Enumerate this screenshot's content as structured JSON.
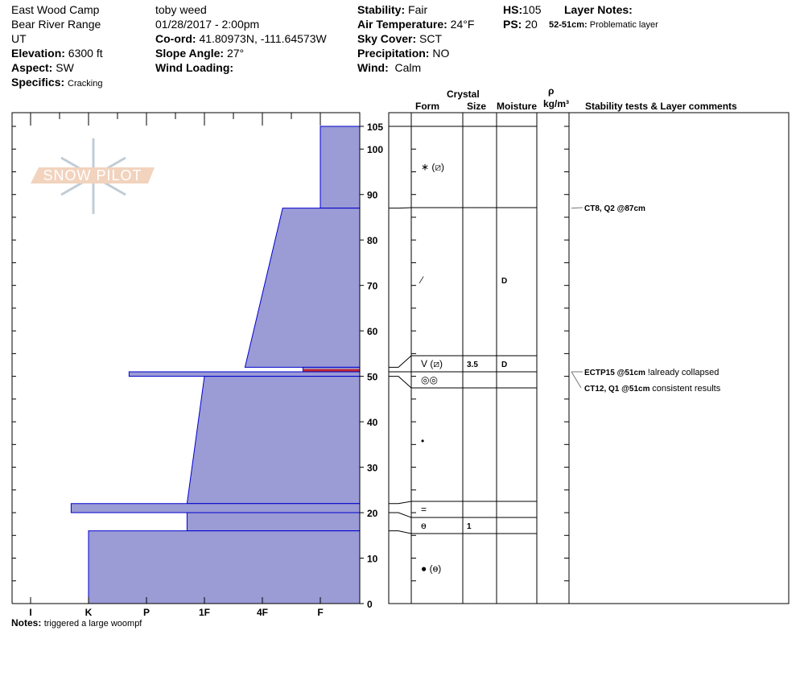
{
  "site": {
    "name": "East Wood Camp",
    "range": "Bear River Range",
    "state": "UT",
    "elevation_label": "Elevation:",
    "elevation": "6300 ft",
    "aspect_label": "Aspect:",
    "aspect": "SW",
    "specifics_label": "Specifics:",
    "specifics": "Cracking"
  },
  "obs": {
    "observer": "toby weed",
    "datetime": "01/28/2017 - 2:00pm",
    "coord_label": "Co-ord:",
    "coord": "41.80973N, -111.64573W",
    "slope_label": "Slope Angle:",
    "slope": "27°",
    "wind_loading_label": "Wind Loading:",
    "wind_loading": ""
  },
  "weather": {
    "stability_label": "Stability:",
    "stability": "Fair",
    "air_temp_label": "Air Temperature:",
    "air_temp": "24°F",
    "sky_label": "Sky Cover:",
    "sky": "SCT",
    "precip_label": "Precipitation:",
    "precip": "NO",
    "wind_label": "Wind:",
    "wind": "Calm"
  },
  "snow": {
    "hs_label": "HS:",
    "hs": "105",
    "ps_label": "PS:",
    "ps": "20",
    "layer_notes_label": "Layer Notes:",
    "layer_note_range": "52-51cm:",
    "layer_note": "Problematic layer"
  },
  "columns": {
    "crystal": "Crystal",
    "form": "Form",
    "size": "Size",
    "moisture": "Moisture",
    "rho": "ρ",
    "density": "kg/m³",
    "comments": "Stability tests & Layer comments"
  },
  "notes_label": "Notes:",
  "notes": "triggered a large woompf",
  "logo_text": "SNOW PILOT",
  "colors": {
    "layer_fill": "#9b9bd6",
    "layer_edge": "#0000cc",
    "problem": "#c0282c"
  },
  "chart_data": {
    "type": "snow-profile",
    "depth_axis": {
      "range": [
        0,
        105
      ],
      "ticks": [
        0,
        10,
        20,
        30,
        40,
        50,
        60,
        70,
        80,
        90,
        100,
        105
      ]
    },
    "hardness_axis": {
      "labels": [
        "I",
        "K",
        "P",
        "1F",
        "4F",
        "F"
      ],
      "values": [
        6,
        5,
        4,
        3,
        2,
        1
      ]
    },
    "layers": [
      {
        "top": 105,
        "bottom": 87,
        "hardness_top": 1,
        "hardness_bottom": 1,
        "form": "∗ (⧄)",
        "size": "",
        "moisture": ""
      },
      {
        "top": 87,
        "bottom": 52,
        "hardness_top": 1.65,
        "hardness_bottom": 2.3,
        "form": "⁄",
        "size": "",
        "moisture": "D"
      },
      {
        "top": 52,
        "bottom": 51,
        "hardness_top": 1.3,
        "hardness_bottom": 1.3,
        "form": "V (⧄)",
        "size": "3.5",
        "moisture": "D",
        "problem": true
      },
      {
        "top": 51,
        "bottom": 50,
        "hardness_top": 4.3,
        "hardness_bottom": 4.3,
        "form": "◎◎",
        "size": "",
        "moisture": ""
      },
      {
        "top": 50,
        "bottom": 22,
        "hardness_top": 3,
        "hardness_bottom": 3.3,
        "form": "•",
        "size": "",
        "moisture": ""
      },
      {
        "top": 22,
        "bottom": 20,
        "hardness_top": 5.3,
        "hardness_bottom": 5.3,
        "form": "=",
        "size": "",
        "moisture": ""
      },
      {
        "top": 20,
        "bottom": 16,
        "hardness_top": 3.3,
        "hardness_bottom": 3.3,
        "form": "ɵ",
        "size": "1",
        "moisture": ""
      },
      {
        "top": 16,
        "bottom": 0,
        "hardness_top": 5,
        "hardness_bottom": 5,
        "form": "● (ɵ)",
        "size": "",
        "moisture": ""
      }
    ],
    "tests": [
      {
        "depth": 87,
        "result": "CT8, Q2 @87cm",
        "comment": ""
      },
      {
        "depth": 51,
        "result": "ECTP15 @51cm",
        "comment": "!already collapsed"
      },
      {
        "depth": 51,
        "result": "CT12, Q1 @51cm",
        "comment": "consistent results"
      }
    ]
  }
}
